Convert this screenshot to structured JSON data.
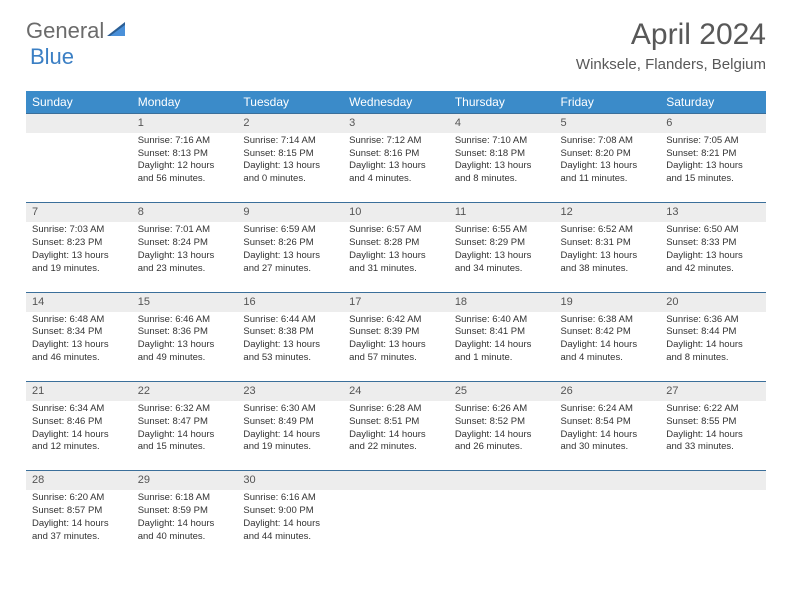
{
  "logo": {
    "text1": "General",
    "text2": "Blue"
  },
  "title": "April 2024",
  "location": "Winksele, Flanders, Belgium",
  "colors": {
    "header_bg": "#3b8bc9",
    "header_text": "#ffffff",
    "daynum_bg": "#ededed",
    "border": "#3b6f9a",
    "logo_gray": "#6b6b6b",
    "logo_blue": "#3b7fc4",
    "title_color": "#585858"
  },
  "dayHeaders": [
    "Sunday",
    "Monday",
    "Tuesday",
    "Wednesday",
    "Thursday",
    "Friday",
    "Saturday"
  ],
  "weeks": [
    [
      {
        "num": "",
        "lines": []
      },
      {
        "num": "1",
        "lines": [
          "Sunrise: 7:16 AM",
          "Sunset: 8:13 PM",
          "Daylight: 12 hours",
          "and 56 minutes."
        ]
      },
      {
        "num": "2",
        "lines": [
          "Sunrise: 7:14 AM",
          "Sunset: 8:15 PM",
          "Daylight: 13 hours",
          "and 0 minutes."
        ]
      },
      {
        "num": "3",
        "lines": [
          "Sunrise: 7:12 AM",
          "Sunset: 8:16 PM",
          "Daylight: 13 hours",
          "and 4 minutes."
        ]
      },
      {
        "num": "4",
        "lines": [
          "Sunrise: 7:10 AM",
          "Sunset: 8:18 PM",
          "Daylight: 13 hours",
          "and 8 minutes."
        ]
      },
      {
        "num": "5",
        "lines": [
          "Sunrise: 7:08 AM",
          "Sunset: 8:20 PM",
          "Daylight: 13 hours",
          "and 11 minutes."
        ]
      },
      {
        "num": "6",
        "lines": [
          "Sunrise: 7:05 AM",
          "Sunset: 8:21 PM",
          "Daylight: 13 hours",
          "and 15 minutes."
        ]
      }
    ],
    [
      {
        "num": "7",
        "lines": [
          "Sunrise: 7:03 AM",
          "Sunset: 8:23 PM",
          "Daylight: 13 hours",
          "and 19 minutes."
        ]
      },
      {
        "num": "8",
        "lines": [
          "Sunrise: 7:01 AM",
          "Sunset: 8:24 PM",
          "Daylight: 13 hours",
          "and 23 minutes."
        ]
      },
      {
        "num": "9",
        "lines": [
          "Sunrise: 6:59 AM",
          "Sunset: 8:26 PM",
          "Daylight: 13 hours",
          "and 27 minutes."
        ]
      },
      {
        "num": "10",
        "lines": [
          "Sunrise: 6:57 AM",
          "Sunset: 8:28 PM",
          "Daylight: 13 hours",
          "and 31 minutes."
        ]
      },
      {
        "num": "11",
        "lines": [
          "Sunrise: 6:55 AM",
          "Sunset: 8:29 PM",
          "Daylight: 13 hours",
          "and 34 minutes."
        ]
      },
      {
        "num": "12",
        "lines": [
          "Sunrise: 6:52 AM",
          "Sunset: 8:31 PM",
          "Daylight: 13 hours",
          "and 38 minutes."
        ]
      },
      {
        "num": "13",
        "lines": [
          "Sunrise: 6:50 AM",
          "Sunset: 8:33 PM",
          "Daylight: 13 hours",
          "and 42 minutes."
        ]
      }
    ],
    [
      {
        "num": "14",
        "lines": [
          "Sunrise: 6:48 AM",
          "Sunset: 8:34 PM",
          "Daylight: 13 hours",
          "and 46 minutes."
        ]
      },
      {
        "num": "15",
        "lines": [
          "Sunrise: 6:46 AM",
          "Sunset: 8:36 PM",
          "Daylight: 13 hours",
          "and 49 minutes."
        ]
      },
      {
        "num": "16",
        "lines": [
          "Sunrise: 6:44 AM",
          "Sunset: 8:38 PM",
          "Daylight: 13 hours",
          "and 53 minutes."
        ]
      },
      {
        "num": "17",
        "lines": [
          "Sunrise: 6:42 AM",
          "Sunset: 8:39 PM",
          "Daylight: 13 hours",
          "and 57 minutes."
        ]
      },
      {
        "num": "18",
        "lines": [
          "Sunrise: 6:40 AM",
          "Sunset: 8:41 PM",
          "Daylight: 14 hours",
          "and 1 minute."
        ]
      },
      {
        "num": "19",
        "lines": [
          "Sunrise: 6:38 AM",
          "Sunset: 8:42 PM",
          "Daylight: 14 hours",
          "and 4 minutes."
        ]
      },
      {
        "num": "20",
        "lines": [
          "Sunrise: 6:36 AM",
          "Sunset: 8:44 PM",
          "Daylight: 14 hours",
          "and 8 minutes."
        ]
      }
    ],
    [
      {
        "num": "21",
        "lines": [
          "Sunrise: 6:34 AM",
          "Sunset: 8:46 PM",
          "Daylight: 14 hours",
          "and 12 minutes."
        ]
      },
      {
        "num": "22",
        "lines": [
          "Sunrise: 6:32 AM",
          "Sunset: 8:47 PM",
          "Daylight: 14 hours",
          "and 15 minutes."
        ]
      },
      {
        "num": "23",
        "lines": [
          "Sunrise: 6:30 AM",
          "Sunset: 8:49 PM",
          "Daylight: 14 hours",
          "and 19 minutes."
        ]
      },
      {
        "num": "24",
        "lines": [
          "Sunrise: 6:28 AM",
          "Sunset: 8:51 PM",
          "Daylight: 14 hours",
          "and 22 minutes."
        ]
      },
      {
        "num": "25",
        "lines": [
          "Sunrise: 6:26 AM",
          "Sunset: 8:52 PM",
          "Daylight: 14 hours",
          "and 26 minutes."
        ]
      },
      {
        "num": "26",
        "lines": [
          "Sunrise: 6:24 AM",
          "Sunset: 8:54 PM",
          "Daylight: 14 hours",
          "and 30 minutes."
        ]
      },
      {
        "num": "27",
        "lines": [
          "Sunrise: 6:22 AM",
          "Sunset: 8:55 PM",
          "Daylight: 14 hours",
          "and 33 minutes."
        ]
      }
    ],
    [
      {
        "num": "28",
        "lines": [
          "Sunrise: 6:20 AM",
          "Sunset: 8:57 PM",
          "Daylight: 14 hours",
          "and 37 minutes."
        ]
      },
      {
        "num": "29",
        "lines": [
          "Sunrise: 6:18 AM",
          "Sunset: 8:59 PM",
          "Daylight: 14 hours",
          "and 40 minutes."
        ]
      },
      {
        "num": "30",
        "lines": [
          "Sunrise: 6:16 AM",
          "Sunset: 9:00 PM",
          "Daylight: 14 hours",
          "and 44 minutes."
        ]
      },
      {
        "num": "",
        "lines": []
      },
      {
        "num": "",
        "lines": []
      },
      {
        "num": "",
        "lines": []
      },
      {
        "num": "",
        "lines": []
      }
    ]
  ]
}
